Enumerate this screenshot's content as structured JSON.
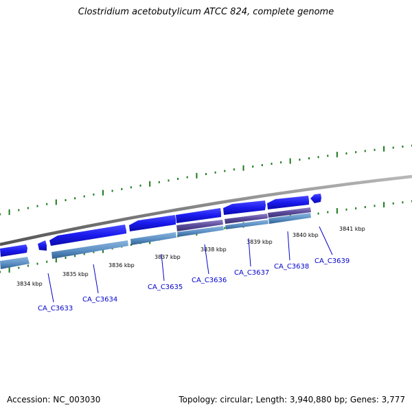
{
  "map": {
    "title": "Clostridium acetobutylicum ATCC 824, complete genome",
    "accession": "Accession: NC_003030",
    "summary": "Topology: circular; Length: 3,940,880 bp; Genes: 3,777"
  },
  "kbp_ticks": [
    "3834 kbp",
    "3835 kbp",
    "3836 kbp",
    "3837 kbp",
    "3838 kbp",
    "3839 kbp",
    "3840 kbp",
    "3841 kbp"
  ],
  "genes": [
    "CA_C3633",
    "CA_C3634",
    "CA_C3635",
    "CA_C3636",
    "CA_C3637",
    "CA_C3638",
    "CA_C3639"
  ],
  "colors": {
    "backbone": "#7f7f7f",
    "gene_blue": "#1a1aee",
    "gene_light": "#5b8fc4",
    "gene_purple": "#5a4a9a",
    "tick_green": "#1a7a1a",
    "label_blue": "#0000cc"
  }
}
